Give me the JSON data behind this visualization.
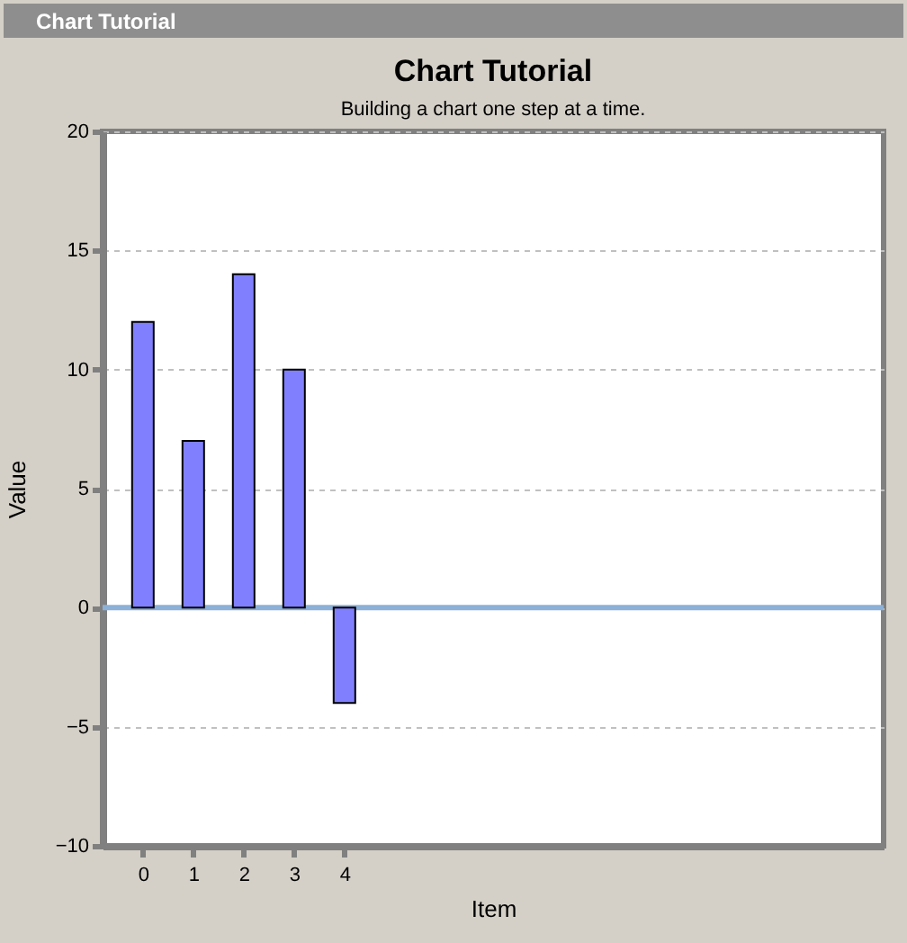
{
  "chart_data": {
    "type": "bar",
    "title": "Chart Tutorial",
    "subtitle": "Building a chart one step at a time.",
    "xlabel": "Item",
    "ylabel": "Value",
    "x": [
      0,
      1,
      2,
      3,
      4
    ],
    "values": [
      12,
      7,
      14,
      10,
      -4
    ],
    "color": "#8080ff",
    "xlim": [
      -0.8,
      14.7
    ],
    "xticks": [
      0,
      1,
      2,
      3,
      4
    ],
    "ylim": [
      -10,
      20
    ],
    "yticks": [
      -10,
      -5,
      0,
      5,
      10,
      15,
      20
    ],
    "grid": "y",
    "ref_lines": [
      {
        "axis": "y",
        "value": 0,
        "color": "#8cb0d8"
      }
    ],
    "annotations": [
      "Chart Tutorial"
    ]
  }
}
